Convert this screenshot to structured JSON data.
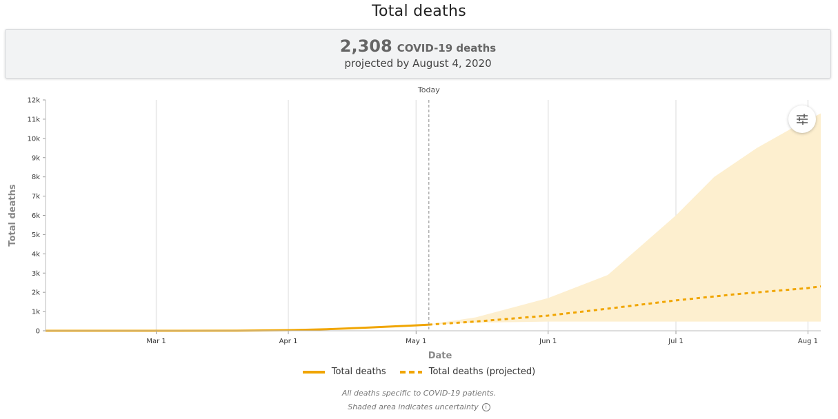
{
  "title": "Total deaths",
  "summary": {
    "number": "2,308",
    "unit": "COVID-19 deaths",
    "projection_text": "projected by August 4, 2020"
  },
  "today_label": "Today",
  "settings_icon": "sliders-icon",
  "legend": {
    "actual": "Total deaths",
    "projected": "Total deaths (projected)"
  },
  "footnote": {
    "line1": "All deaths specific to COVID-19 patients.",
    "line2": "Shaded area indicates uncertainty",
    "info_icon": "info-icon"
  },
  "colors": {
    "line": "#f0a500",
    "band": "#fdefcf"
  },
  "chart_data": {
    "type": "line",
    "xlabel": "Date",
    "ylabel": "Total deaths",
    "xlim": [
      "2020-02-04",
      "2020-08-04"
    ],
    "ylim": [
      0,
      12000
    ],
    "x_ticks": [
      {
        "date": "2020-03-01",
        "label": "Mar 1"
      },
      {
        "date": "2020-04-01",
        "label": "Apr 1"
      },
      {
        "date": "2020-05-01",
        "label": "May 1"
      },
      {
        "date": "2020-06-01",
        "label": "Jun 1"
      },
      {
        "date": "2020-07-01",
        "label": "Jul 1"
      },
      {
        "date": "2020-08-01",
        "label": "Aug 1"
      }
    ],
    "y_ticks": [
      {
        "value": 0,
        "label": "0"
      },
      {
        "value": 1000,
        "label": "1k"
      },
      {
        "value": 2000,
        "label": "2k"
      },
      {
        "value": 3000,
        "label": "3k"
      },
      {
        "value": 4000,
        "label": "4k"
      },
      {
        "value": 5000,
        "label": "5k"
      },
      {
        "value": 6000,
        "label": "6k"
      },
      {
        "value": 7000,
        "label": "7k"
      },
      {
        "value": 8000,
        "label": "8k"
      },
      {
        "value": 9000,
        "label": "9k"
      },
      {
        "value": 10000,
        "label": "10k"
      },
      {
        "value": 11000,
        "label": "11k"
      },
      {
        "value": 12000,
        "label": "12k"
      }
    ],
    "grid": true,
    "today": "2020-05-04",
    "series": [
      {
        "name": "Total deaths",
        "style": "solid",
        "points": [
          {
            "x": "2020-02-04",
            "y": 0
          },
          {
            "x": "2020-03-01",
            "y": 0
          },
          {
            "x": "2020-03-20",
            "y": 5
          },
          {
            "x": "2020-04-01",
            "y": 30
          },
          {
            "x": "2020-04-10",
            "y": 80
          },
          {
            "x": "2020-04-20",
            "y": 170
          },
          {
            "x": "2020-05-01",
            "y": 280
          },
          {
            "x": "2020-05-04",
            "y": 320
          }
        ]
      },
      {
        "name": "Total deaths (projected)",
        "style": "dashed",
        "points": [
          {
            "x": "2020-05-04",
            "y": 320
          },
          {
            "x": "2020-05-15",
            "y": 480
          },
          {
            "x": "2020-06-01",
            "y": 790
          },
          {
            "x": "2020-06-15",
            "y": 1150
          },
          {
            "x": "2020-07-01",
            "y": 1580
          },
          {
            "x": "2020-07-15",
            "y": 1900
          },
          {
            "x": "2020-08-01",
            "y": 2220
          },
          {
            "x": "2020-08-04",
            "y": 2308
          }
        ]
      }
    ],
    "uncertainty_band": [
      {
        "x": "2020-05-04",
        "lower": 320,
        "upper": 330
      },
      {
        "x": "2020-05-15",
        "lower": 420,
        "upper": 700
      },
      {
        "x": "2020-06-01",
        "lower": 480,
        "upper": 1700
      },
      {
        "x": "2020-06-15",
        "lower": 480,
        "upper": 2900
      },
      {
        "x": "2020-07-01",
        "lower": 480,
        "upper": 6000
      },
      {
        "x": "2020-07-10",
        "lower": 480,
        "upper": 8000
      },
      {
        "x": "2020-07-20",
        "lower": 480,
        "upper": 9500
      },
      {
        "x": "2020-07-28",
        "lower": 480,
        "upper": 10500
      },
      {
        "x": "2020-08-04",
        "lower": 480,
        "upper": 11300
      }
    ]
  }
}
